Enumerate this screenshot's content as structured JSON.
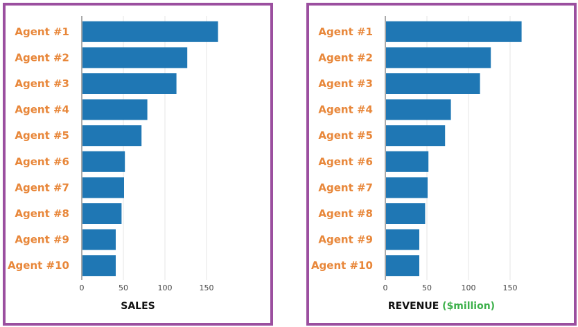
{
  "colors": {
    "bar": "#1f77b4",
    "category_label": "#e8873a",
    "panel_border": "#9b4f9f",
    "unit": "#3cb04a"
  },
  "chart_data": [
    {
      "type": "bar",
      "orientation": "horizontal",
      "categories": [
        "Agent #1",
        "Agent #2",
        "Agent #3",
        "Agent #4",
        "Agent #5",
        "Agent #6",
        "Agent #7",
        "Agent #8",
        "Agent #9",
        "Agent #10"
      ],
      "values": [
        163,
        126,
        113,
        78,
        71,
        51,
        50,
        47,
        40,
        40
      ],
      "xlabel": "SALES",
      "xlim": [
        0,
        170
      ],
      "xticks": [
        0,
        50,
        100,
        150
      ],
      "grid": true
    },
    {
      "type": "bar",
      "orientation": "horizontal",
      "categories": [
        "Agent #1",
        "Agent #2",
        "Agent #3",
        "Agent #4",
        "Agent #5",
        "Agent #6",
        "Agent #7",
        "Agent #8",
        "Agent #9",
        "Agent #10"
      ],
      "values": [
        163,
        126,
        113,
        78,
        71,
        51,
        50,
        47,
        40,
        40
      ],
      "xlabel": "REVENUE",
      "xlabel_unit": "($million)",
      "xlim": [
        0,
        170
      ],
      "xticks": [
        0,
        50,
        100,
        150
      ],
      "grid": true
    }
  ]
}
